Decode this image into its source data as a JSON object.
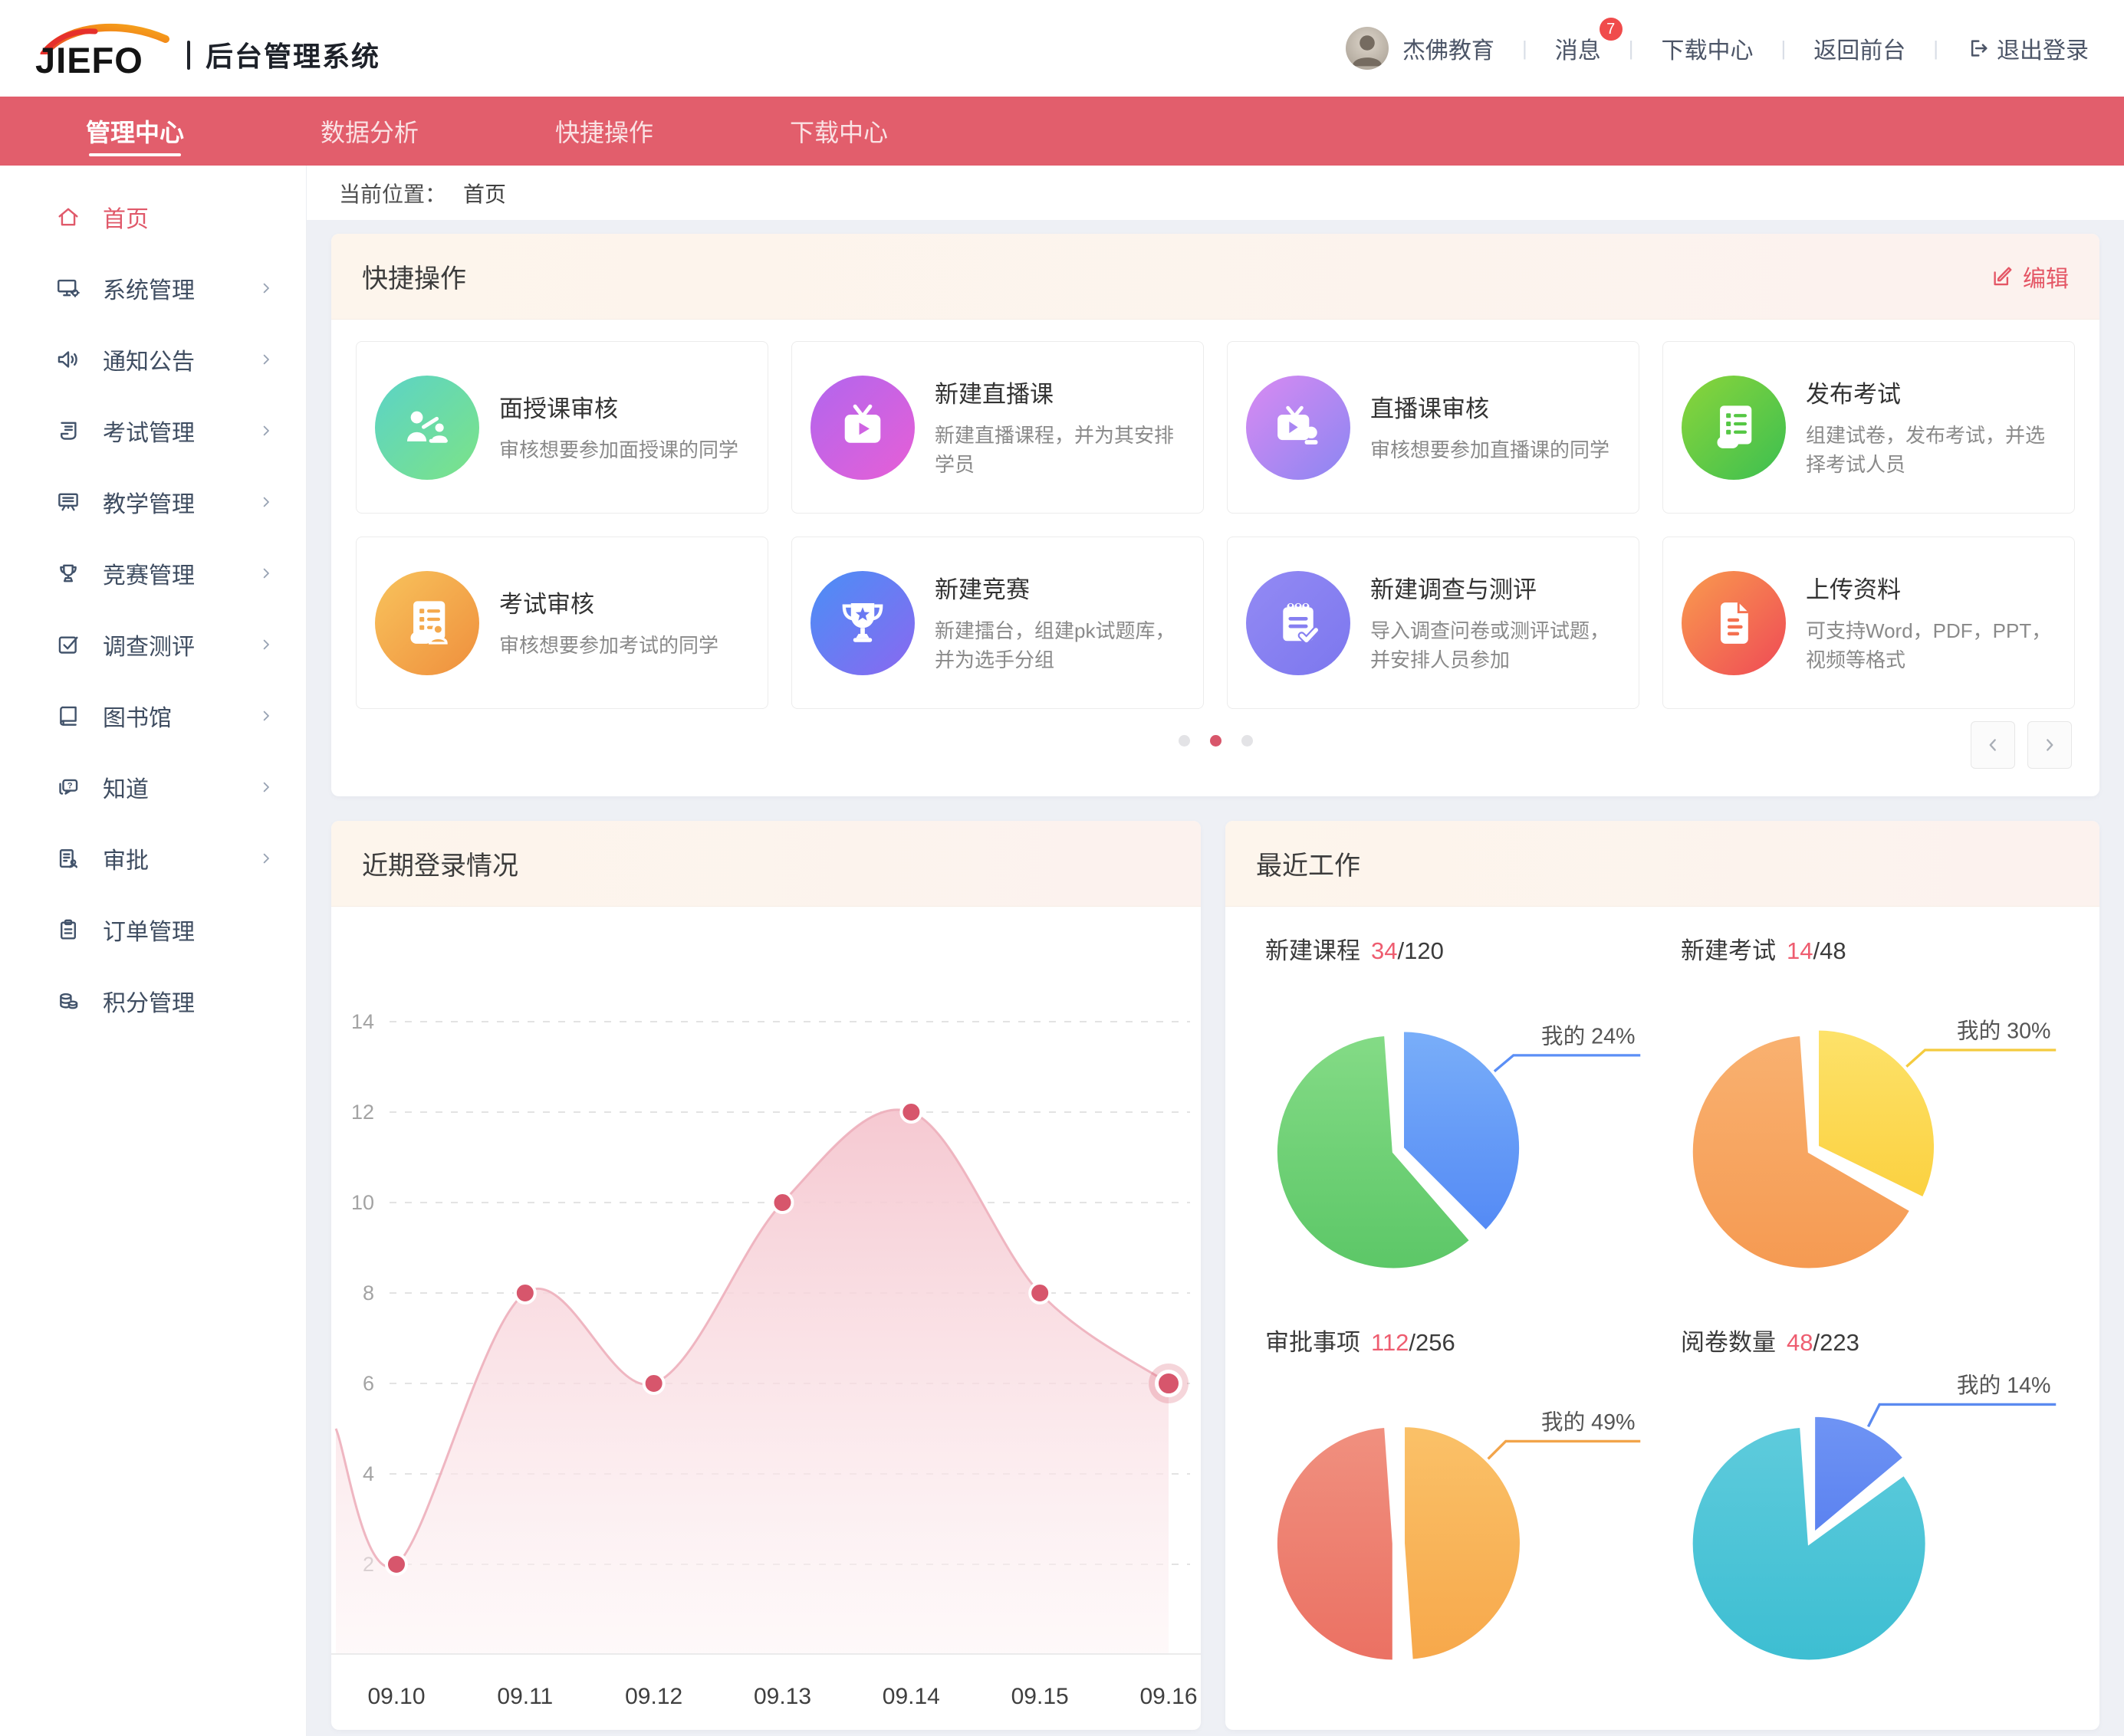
{
  "header": {
    "logo_text": "JIEFO",
    "app_title": "后台管理系统",
    "user_name": "杰佛教育",
    "messages_label": "消息",
    "messages_badge": "7",
    "download_label": "下载中心",
    "back_label": "返回前台",
    "logout_label": "退出登录"
  },
  "nav": {
    "tabs": [
      {
        "key": "admin-center",
        "label": "管理中心",
        "active": true
      },
      {
        "key": "data-analysis",
        "label": "数据分析",
        "active": false
      },
      {
        "key": "quick-ops",
        "label": "快捷操作",
        "active": false
      },
      {
        "key": "download-center",
        "label": "下载中心",
        "active": false
      }
    ]
  },
  "sidebar": {
    "items": [
      {
        "key": "home",
        "label": "首页",
        "icon": "home",
        "chevron": false,
        "active": true
      },
      {
        "key": "system",
        "label": "系统管理",
        "icon": "system",
        "chevron": true,
        "active": false
      },
      {
        "key": "notice",
        "label": "通知公告",
        "icon": "speaker",
        "chevron": true,
        "active": false
      },
      {
        "key": "exam",
        "label": "考试管理",
        "icon": "exam",
        "chevron": true,
        "active": false
      },
      {
        "key": "teaching",
        "label": "教学管理",
        "icon": "board",
        "chevron": true,
        "active": false
      },
      {
        "key": "contest",
        "label": "竞赛管理",
        "icon": "trophy",
        "chevron": true,
        "active": false
      },
      {
        "key": "survey",
        "label": "调查测评",
        "icon": "survey",
        "chevron": true,
        "active": false
      },
      {
        "key": "library",
        "label": "图书馆",
        "icon": "book",
        "chevron": true,
        "active": false
      },
      {
        "key": "know",
        "label": "知道",
        "icon": "chat",
        "chevron": true,
        "active": false
      },
      {
        "key": "approval",
        "label": "审批",
        "icon": "approve",
        "chevron": true,
        "active": false
      },
      {
        "key": "orders",
        "label": "订单管理",
        "icon": "clipboard",
        "chevron": false,
        "active": false
      },
      {
        "key": "points",
        "label": "积分管理",
        "icon": "coins",
        "chevron": false,
        "active": false
      }
    ]
  },
  "breadcrumb": {
    "label": "当前位置：",
    "current": "首页"
  },
  "quick_ops": {
    "title": "快捷操作",
    "edit_label": "编辑",
    "accent": "#e45665",
    "cards": [
      {
        "key": "face-review",
        "title": "面授课审核",
        "desc": "审核想要参加面授课的同学",
        "icon": "teacher",
        "gradient": [
          "#5bd3c7",
          "#7ce387"
        ],
        "cut": "#5fd79a"
      },
      {
        "key": "new-live",
        "title": "新建直播课",
        "desc": "新建直播课程，并为其安排学员",
        "icon": "tv",
        "gradient": [
          "#b166ee",
          "#e75fd6"
        ],
        "cut": "#cf63e2"
      },
      {
        "key": "live-review",
        "title": "直播课审核",
        "desc": "审核想要参加直播课的同学",
        "icon": "tvstamp",
        "gradient": [
          "#d98af2",
          "#8b86f2"
        ],
        "cut": "#a987f2"
      },
      {
        "key": "publish-exam",
        "title": "发布考试",
        "desc": "组建试卷，发布考试，并选择考试人员",
        "icon": "scroll",
        "gradient": [
          "#8bd53a",
          "#3cbf51"
        ],
        "cut": "#55c744"
      },
      {
        "key": "exam-review",
        "title": "考试审核",
        "desc": "审核想要参加考试的同学",
        "icon": "scrollperson",
        "gradient": [
          "#f8c35c",
          "#ef8f3d"
        ],
        "cut": "#f4a94d"
      },
      {
        "key": "new-contest",
        "title": "新建竞赛",
        "desc": "新建擂台，组建pk试题库，并为选手分组",
        "icon": "cup",
        "gradient": [
          "#4a8ff6",
          "#8a68f0"
        ],
        "cut": "#6a79f2"
      },
      {
        "key": "new-survey",
        "title": "新建调查与测评",
        "desc": "导入调查问卷或测评试题，并安排人员参加",
        "icon": "notepad",
        "gradient": [
          "#938af4",
          "#7c77ee"
        ],
        "cut": "#867ff1"
      },
      {
        "key": "upload",
        "title": "上传资料",
        "desc": "可支持Word，PDF，PPT，视频等格式",
        "icon": "updoc",
        "gradient": [
          "#f99b4e",
          "#ef4a56"
        ],
        "cut": "#f4704f"
      }
    ],
    "dots": 3,
    "active_dot": 1
  },
  "login_chart": {
    "title": "近期登录情况",
    "chart_data": {
      "type": "area",
      "categories": [
        "09.10",
        "09.11",
        "09.12",
        "09.13",
        "09.14",
        "09.15",
        "09.16"
      ],
      "values": [
        2,
        8,
        6,
        10,
        12,
        8,
        6
      ],
      "yticks": [
        2,
        4,
        6,
        8,
        10,
        12,
        14
      ],
      "ylim": [
        0,
        14
      ],
      "grid": true
    },
    "colors": {
      "area_top": "#f5c6cf",
      "area_bottom": "#fdf4f5",
      "line": "#edafbb",
      "dot": "#d7566c",
      "grid": "#e3e3e3"
    }
  },
  "recent_work": {
    "title": "最近工作",
    "stats": [
      {
        "key": "new-course",
        "label": "新建课程",
        "value": "34",
        "total": "/120",
        "mine_label": "我的 24%",
        "mine_pct": 24,
        "sweep": 135,
        "line_angle": 50,
        "mine_colors": [
          "#79aef9",
          "#548af5"
        ],
        "rest_colors": [
          "#84db86",
          "#5cc767"
        ],
        "line_color": "#5b8ff6"
      },
      {
        "key": "new-exam",
        "label": "新建考试",
        "value": "14",
        "total": "/48",
        "mine_label": "我的 30%",
        "mine_pct": 30,
        "sweep": 116,
        "line_angle": 48,
        "mine_colors": [
          "#fde26a",
          "#fbd140"
        ],
        "rest_colors": [
          "#f9b170",
          "#f59a52"
        ],
        "line_color": "#f4cb3e"
      },
      {
        "key": "approvals",
        "label": "审批事项",
        "value": "112",
        "total": "/256",
        "mine_label": "我的 49%",
        "mine_pct": 49,
        "sweep": 176,
        "line_angle": 45,
        "mine_colors": [
          "#fac168",
          "#f7a84b"
        ],
        "rest_colors": [
          "#f0907f",
          "#eb7163"
        ],
        "line_color": "#f2a44a"
      },
      {
        "key": "grading",
        "label": "阅卷数量",
        "value": "48",
        "total": "/223",
        "mine_label": "我的 14%",
        "mine_pct": 14,
        "sweep": 50,
        "line_angle": 27,
        "mine_colors": [
          "#6f94f4",
          "#5b82f0"
        ],
        "rest_colors": [
          "#5ecbdc",
          "#3dbed2"
        ],
        "line_color": "#5b8af0"
      }
    ]
  }
}
